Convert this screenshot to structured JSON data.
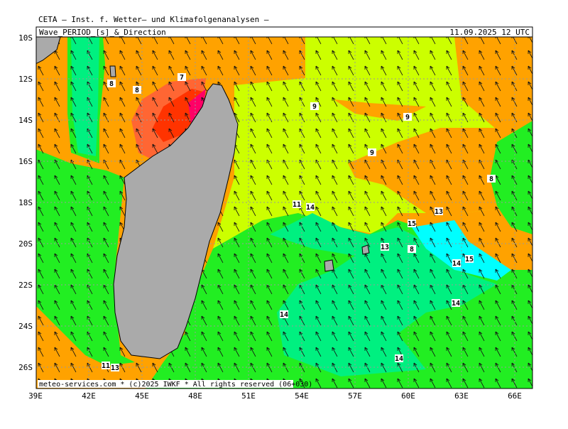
{
  "header": {
    "institute": "CETA – Inst. f. Wetter– und Klimafolgenanalysen –",
    "product": "Wave_PERIOD_[s]_&_Direction",
    "valid_time": "11.09.2025 12 UTC"
  },
  "axes": {
    "lon_labels": [
      "39E",
      "42E",
      "45E",
      "48E",
      "51E",
      "54E",
      "57E",
      "60E",
      "63E",
      "66E"
    ],
    "lat_labels": [
      "10S",
      "12S",
      "14S",
      "16S",
      "18S",
      "20S",
      "22S",
      "24S",
      "26S"
    ]
  },
  "contour_labels": [
    "7",
    "8",
    "8",
    "9",
    "9",
    "9",
    "8",
    "11",
    "14",
    "13",
    "15",
    "13",
    "8",
    "14",
    "15",
    "14",
    "14",
    "14",
    "11",
    "13"
  ],
  "footer": "meteo-services.com * (c)2025 IWKF * All rights reserved (06+030)"
}
